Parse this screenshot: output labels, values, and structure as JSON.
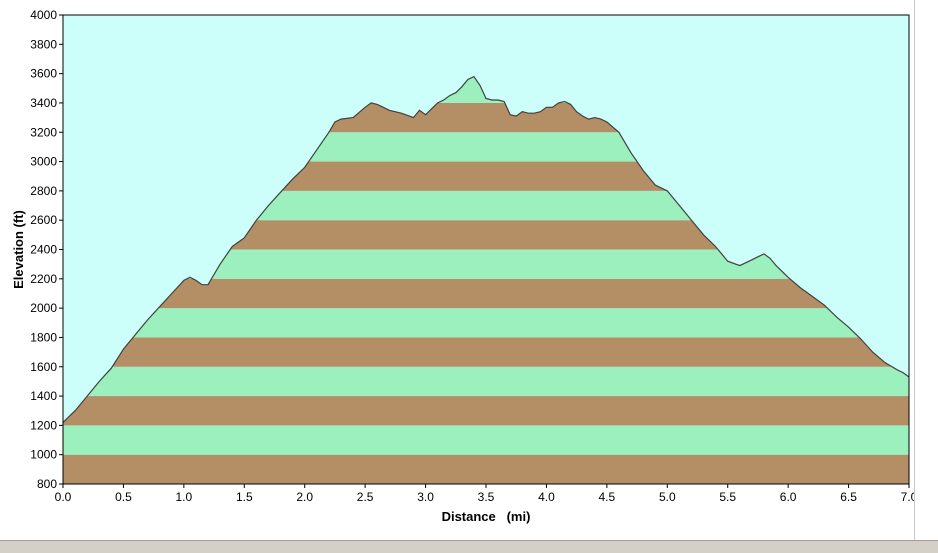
{
  "chart_data": {
    "type": "area",
    "title": "",
    "xlabel": "Distance   (mi)",
    "ylabel": "Elevation (ft)",
    "xlim": [
      0,
      7
    ],
    "ylim": [
      800,
      4000
    ],
    "x_ticks": [
      "0.0",
      "0.5",
      "1.0",
      "1.5",
      "2.0",
      "2.5",
      "3.0",
      "3.5",
      "4.0",
      "4.5",
      "5.0",
      "5.5",
      "6.0",
      "6.5",
      "7.0"
    ],
    "y_ticks": [
      "4000",
      "3800",
      "3600",
      "3400",
      "3200",
      "3000",
      "2800",
      "2600",
      "2400",
      "2200",
      "2000",
      "1800",
      "1600",
      "1400",
      "1200",
      "1000",
      "800"
    ],
    "band_interval_ft": 200,
    "colors": {
      "plot_background": "#ccfffa",
      "band_green": "#9bf0bd",
      "band_brown": "#b48f66",
      "profile_line": "#404040"
    },
    "grid": false,
    "legend": "none",
    "series": [
      {
        "x": [
          0.0,
          0.05,
          0.1,
          0.2,
          0.3,
          0.4,
          0.5,
          0.6,
          0.7,
          0.8,
          0.9,
          1.0,
          1.05,
          1.1,
          1.15,
          1.2,
          1.3,
          1.4,
          1.5,
          1.6,
          1.7,
          1.8,
          1.9,
          2.0,
          2.1,
          2.2,
          2.25,
          2.3,
          2.4,
          2.5,
          2.55,
          2.6,
          2.65,
          2.7,
          2.8,
          2.9,
          2.95,
          3.0,
          3.05,
          3.1,
          3.15,
          3.2,
          3.25,
          3.3,
          3.35,
          3.4,
          3.45,
          3.5,
          3.55,
          3.6,
          3.65,
          3.7,
          3.75,
          3.8,
          3.85,
          3.9,
          3.95,
          4.0,
          4.05,
          4.1,
          4.15,
          4.2,
          4.25,
          4.3,
          4.35,
          4.4,
          4.45,
          4.5,
          4.6,
          4.7,
          4.8,
          4.9,
          5.0,
          5.1,
          5.2,
          5.3,
          5.4,
          5.5,
          5.6,
          5.7,
          5.75,
          5.8,
          5.85,
          5.9,
          6.0,
          6.1,
          6.2,
          6.3,
          6.4,
          6.5,
          6.6,
          6.7,
          6.8,
          6.9,
          6.95,
          7.0
        ],
        "y": [
          1220,
          1260,
          1300,
          1400,
          1500,
          1590,
          1720,
          1820,
          1920,
          2010,
          2100,
          2190,
          2210,
          2190,
          2160,
          2160,
          2300,
          2420,
          2480,
          2600,
          2700,
          2790,
          2880,
          2960,
          3080,
          3200,
          3270,
          3290,
          3300,
          3370,
          3400,
          3390,
          3370,
          3350,
          3330,
          3300,
          3350,
          3320,
          3360,
          3400,
          3420,
          3450,
          3470,
          3510,
          3560,
          3580,
          3520,
          3430,
          3420,
          3420,
          3410,
          3320,
          3310,
          3340,
          3330,
          3330,
          3340,
          3370,
          3370,
          3400,
          3410,
          3390,
          3340,
          3310,
          3290,
          3300,
          3290,
          3270,
          3200,
          3060,
          2940,
          2840,
          2800,
          2700,
          2600,
          2500,
          2420,
          2320,
          2290,
          2330,
          2350,
          2370,
          2340,
          2290,
          2210,
          2140,
          2080,
          2020,
          1940,
          1870,
          1790,
          1700,
          1630,
          1580,
          1560,
          1530
        ]
      }
    ]
  }
}
